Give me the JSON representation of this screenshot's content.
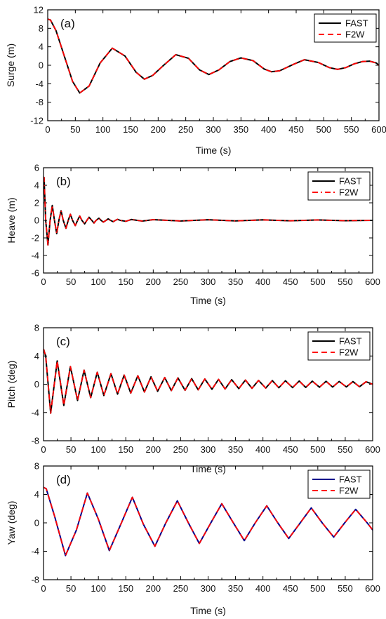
{
  "chart_data": [
    {
      "type": "line",
      "panel_label": "(a)",
      "xlabel": "Time (s)",
      "ylabel": "Surge (m)",
      "xlim": [
        0,
        600
      ],
      "ylim": [
        -12,
        12
      ],
      "xticks": [
        0,
        50,
        100,
        150,
        200,
        250,
        300,
        350,
        400,
        450,
        500,
        550,
        600
      ],
      "yticks": [
        -12,
        -8,
        -4,
        0,
        4,
        8,
        12
      ],
      "grid": false,
      "legend_position": "top-right",
      "series": [
        {
          "name": "FAST",
          "color": "#000000",
          "style": "solid",
          "x": [
            0,
            5,
            15,
            30,
            45,
            58,
            75,
            95,
            117,
            140,
            160,
            175,
            190,
            210,
            232,
            255,
            275,
            292,
            310,
            330,
            350,
            372,
            392,
            405,
            420,
            445,
            465,
            490,
            510,
            525,
            540,
            555,
            570,
            583,
            595,
            600
          ],
          "y": [
            10,
            9.8,
            7.5,
            2,
            -3.5,
            -6,
            -4.5,
            0.5,
            3.7,
            2,
            -1.5,
            -3,
            -2.2,
            0,
            2.3,
            1.5,
            -1,
            -2,
            -1,
            0.8,
            1.6,
            1,
            -0.8,
            -1.4,
            -1.2,
            0.2,
            1.2,
            0.6,
            -0.5,
            -0.9,
            -0.5,
            0.3,
            0.8,
            0.9,
            0.5,
            0
          ]
        },
        {
          "name": "F2W",
          "color": "#ff0000",
          "style": "dashed",
          "x": [
            0,
            5,
            15,
            30,
            45,
            58,
            75,
            95,
            117,
            140,
            160,
            175,
            190,
            210,
            232,
            255,
            275,
            292,
            310,
            330,
            350,
            372,
            392,
            405,
            420,
            445,
            465,
            490,
            510,
            525,
            540,
            555,
            570,
            583,
            595,
            600
          ],
          "y": [
            10,
            9.8,
            7.5,
            2,
            -3.5,
            -6,
            -4.5,
            0.5,
            3.7,
            2,
            -1.5,
            -3,
            -2.2,
            0,
            2.3,
            1.5,
            -1,
            -2,
            -1,
            0.8,
            1.6,
            1,
            -0.8,
            -1.4,
            -1.2,
            0.2,
            1.2,
            0.6,
            -0.5,
            -0.9,
            -0.5,
            0.3,
            0.8,
            0.9,
            0.5,
            0
          ]
        }
      ]
    },
    {
      "type": "line",
      "panel_label": "(b)",
      "xlabel": "Time (s)",
      "ylabel": "Heave (m)",
      "xlim": [
        0,
        600
      ],
      "ylim": [
        -6,
        6
      ],
      "xticks": [
        0,
        50,
        100,
        150,
        200,
        250,
        300,
        350,
        400,
        450,
        500,
        550,
        600
      ],
      "yticks": [
        -6,
        -4,
        -2,
        0,
        2,
        4,
        6
      ],
      "grid": false,
      "legend_position": "top-right",
      "series": [
        {
          "name": "FAST",
          "color": "#000000",
          "style": "solid",
          "x": [
            0,
            1,
            4,
            8,
            12,
            16,
            20,
            24,
            28,
            32,
            36,
            41,
            45,
            49,
            53,
            58,
            62,
            66,
            70,
            75,
            79,
            83,
            88,
            92,
            96,
            101,
            105,
            109,
            114,
            118,
            122,
            127,
            131,
            135,
            140,
            150,
            160,
            180,
            200,
            250,
            300,
            350,
            400,
            450,
            500,
            550,
            600
          ],
          "y": [
            4.8,
            4.9,
            0,
            -2.8,
            0,
            1.7,
            0,
            -1.5,
            0,
            1.1,
            0,
            -0.9,
            0,
            0.7,
            0,
            -0.6,
            0,
            0.5,
            0,
            -0.4,
            0,
            0.35,
            0,
            -0.3,
            0,
            0.25,
            0,
            -0.2,
            0,
            0.18,
            0,
            -0.15,
            0,
            0.12,
            0,
            -0.1,
            0.1,
            -0.08,
            0.08,
            -0.07,
            0.07,
            -0.06,
            0.06,
            -0.05,
            0.05,
            -0.04,
            0
          ]
        },
        {
          "name": "F2W",
          "color": "#ff0000",
          "style": "dash-dot",
          "x": [
            0,
            1,
            4,
            8,
            12,
            16,
            20,
            24,
            28,
            32,
            36,
            41,
            45,
            49,
            53,
            58,
            62,
            66,
            70,
            75,
            79,
            83,
            88,
            92,
            96,
            101,
            105,
            109,
            114,
            118,
            122,
            127,
            131,
            135,
            140,
            150,
            160,
            180,
            200,
            250,
            300,
            350,
            400,
            450,
            500,
            550,
            600
          ],
          "y": [
            4.8,
            4.9,
            0,
            -2.8,
            0,
            1.7,
            0,
            -1.5,
            0,
            1.1,
            0,
            -0.9,
            0,
            0.7,
            0,
            -0.6,
            0,
            0.5,
            0,
            -0.4,
            0,
            0.35,
            0,
            -0.3,
            0,
            0.25,
            0,
            -0.2,
            0,
            0.18,
            0,
            -0.15,
            0,
            0.12,
            0,
            -0.1,
            0.1,
            -0.08,
            0.08,
            -0.07,
            0.07,
            -0.06,
            0.06,
            -0.05,
            0.05,
            -0.04,
            0
          ]
        }
      ]
    },
    {
      "type": "line",
      "panel_label": "(c)",
      "xlabel": "Time (s)",
      "ylabel": "Pitch (deg)",
      "xlim": [
        0,
        600
      ],
      "ylim": [
        -8,
        8
      ],
      "xticks": [
        0,
        50,
        100,
        150,
        200,
        250,
        300,
        350,
        400,
        450,
        500,
        550,
        600
      ],
      "yticks": [
        -8,
        -4,
        0,
        4,
        8
      ],
      "grid": false,
      "legend_position": "top-right",
      "series": [
        {
          "name": "FAST",
          "color": "#000000",
          "style": "solid",
          "x": [
            0,
            4,
            13,
            25,
            37,
            49,
            62,
            74,
            86,
            98,
            110,
            123,
            135,
            147,
            159,
            172,
            184,
            196,
            208,
            221,
            233,
            245,
            258,
            270,
            282,
            294,
            307,
            319,
            331,
            343,
            356,
            368,
            380,
            392,
            405,
            417,
            429,
            441,
            454,
            466,
            478,
            490,
            503,
            515,
            527,
            539,
            552,
            564,
            576,
            588,
            600
          ],
          "y": [
            5,
            4,
            -4.1,
            3.3,
            -3,
            2.5,
            -2.3,
            2,
            -1.9,
            1.7,
            -1.6,
            1.5,
            -1.4,
            1.3,
            -1.25,
            1.2,
            -1.1,
            1.05,
            -1,
            0.95,
            -0.9,
            0.9,
            -0.85,
            0.8,
            -0.8,
            0.75,
            -0.72,
            0.7,
            -0.68,
            0.65,
            -0.62,
            0.6,
            -0.58,
            0.55,
            -0.55,
            0.52,
            -0.5,
            0.5,
            -0.48,
            0.46,
            -0.45,
            0.44,
            -0.42,
            0.42,
            -0.4,
            0.4,
            -0.38,
            0.38,
            -0.36,
            0.36,
            0
          ]
        },
        {
          "name": "F2W",
          "color": "#ff0000",
          "style": "dashed",
          "x": [
            0,
            4,
            13,
            25,
            37,
            49,
            62,
            74,
            86,
            98,
            110,
            123,
            135,
            147,
            159,
            172,
            184,
            196,
            208,
            221,
            233,
            245,
            258,
            270,
            282,
            294,
            307,
            319,
            331,
            343,
            356,
            368,
            380,
            392,
            405,
            417,
            429,
            441,
            454,
            466,
            478,
            490,
            503,
            515,
            527,
            539,
            552,
            564,
            576,
            588,
            600
          ],
          "y": [
            5,
            4,
            -4.1,
            3.3,
            -3,
            2.5,
            -2.3,
            2,
            -1.9,
            1.7,
            -1.6,
            1.5,
            -1.4,
            1.3,
            -1.25,
            1.2,
            -1.1,
            1.05,
            -1,
            0.95,
            -0.9,
            0.9,
            -0.85,
            0.8,
            -0.8,
            0.75,
            -0.72,
            0.7,
            -0.68,
            0.65,
            -0.62,
            0.6,
            -0.58,
            0.55,
            -0.55,
            0.52,
            -0.5,
            0.5,
            -0.48,
            0.46,
            -0.45,
            0.44,
            -0.42,
            0.42,
            -0.4,
            0.4,
            -0.38,
            0.38,
            -0.36,
            0.36,
            0
          ]
        }
      ]
    },
    {
      "type": "line",
      "panel_label": "(d)",
      "xlabel": "Time (s)",
      "ylabel": "Yaw (deg)",
      "xlim": [
        0,
        600
      ],
      "ylim": [
        -8,
        8
      ],
      "xticks": [
        0,
        50,
        100,
        150,
        200,
        250,
        300,
        350,
        400,
        450,
        500,
        550,
        600
      ],
      "yticks": [
        -8,
        -4,
        0,
        4,
        8
      ],
      "grid": false,
      "legend_position": "top-right",
      "series": [
        {
          "name": "FAST",
          "color": "#00008b",
          "style": "solid",
          "x": [
            0,
            5,
            20,
            40,
            60,
            80,
            100,
            120,
            142,
            162,
            182,
            203,
            223,
            244,
            264,
            284,
            305,
            325,
            346,
            366,
            386,
            407,
            427,
            447,
            468,
            488,
            508,
            529,
            549,
            569,
            590,
            600
          ],
          "y": [
            5,
            4.8,
            1,
            -4.6,
            -1,
            4.2,
            0.5,
            -3.9,
            0,
            3.6,
            -0.2,
            -3.3,
            0,
            3.1,
            0,
            -2.9,
            0,
            2.7,
            0,
            -2.5,
            0,
            2.4,
            0,
            -2.2,
            0,
            2.1,
            0,
            -2,
            0,
            1.9,
            0,
            -1
          ]
        },
        {
          "name": "F2W",
          "color": "#ff0000",
          "style": "dashed",
          "x": [
            0,
            5,
            20,
            40,
            60,
            80,
            100,
            120,
            142,
            162,
            182,
            203,
            223,
            244,
            264,
            284,
            305,
            325,
            346,
            366,
            386,
            407,
            427,
            447,
            468,
            488,
            508,
            529,
            549,
            569,
            590,
            600
          ],
          "y": [
            5,
            4.8,
            1,
            -4.6,
            -1,
            4.2,
            0.5,
            -3.9,
            0,
            3.6,
            -0.2,
            -3.3,
            0,
            3.1,
            0,
            -2.9,
            0,
            2.7,
            0,
            -2.5,
            0,
            2.4,
            0,
            -2.2,
            0,
            2.1,
            0,
            -2,
            0,
            1.9,
            0,
            -1
          ]
        }
      ]
    }
  ]
}
